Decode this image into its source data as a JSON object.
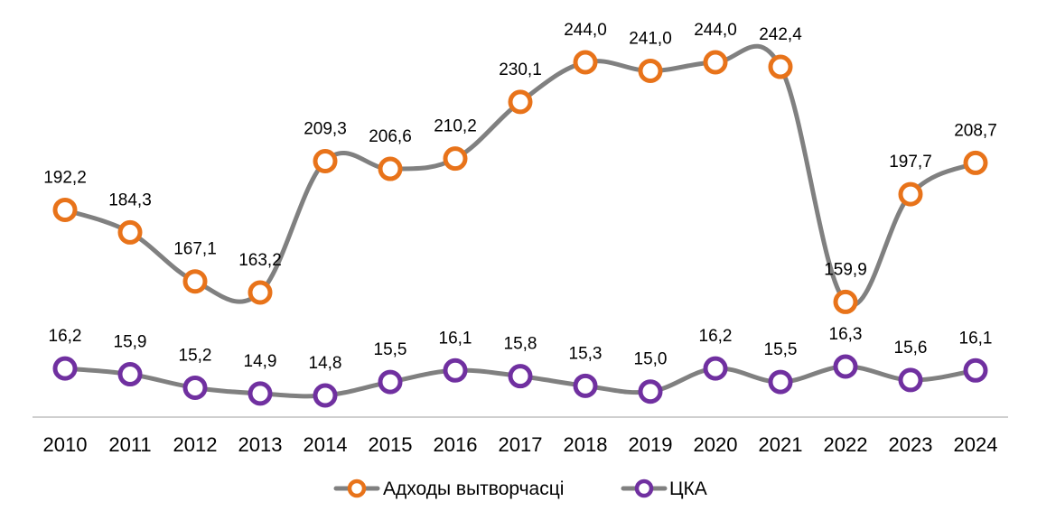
{
  "chart_data": {
    "type": "line",
    "categories": [
      "2010",
      "2011",
      "2012",
      "2013",
      "2014",
      "2015",
      "2016",
      "2017",
      "2018",
      "2019",
      "2020",
      "2021",
      "2022",
      "2023",
      "2024"
    ],
    "series": [
      {
        "name": "Адходы вытворчасці",
        "values": [
          192.2,
          184.3,
          167.1,
          163.2,
          209.3,
          206.6,
          210.2,
          230.1,
          244.0,
          241.0,
          244.0,
          242.4,
          159.9,
          197.7,
          208.7
        ],
        "labels": [
          "192,2",
          "184,3",
          "167,1",
          "163,2",
          "209,3",
          "206,6",
          "210,2",
          "230,1",
          "244,0",
          "241,0",
          "244,0",
          "242,4",
          "159,9",
          "197,7",
          "208,7"
        ],
        "marker_color": "#E8731A"
      },
      {
        "name": "ЦКА",
        "values": [
          16.2,
          15.9,
          15.2,
          14.9,
          14.8,
          15.5,
          16.1,
          15.8,
          15.3,
          15.0,
          16.2,
          15.5,
          16.3,
          15.6,
          16.1
        ],
        "labels": [
          "16,2",
          "15,9",
          "15,2",
          "14,9",
          "14,8",
          "15,5",
          "16,1",
          "15,8",
          "15,3",
          "15,0",
          "16,2",
          "15,5",
          "16,3",
          "15,6",
          "16,1"
        ],
        "marker_color": "#7030A0"
      }
    ],
    "line_color": "#808080",
    "axis_color": "#BFBFBF",
    "title": "",
    "xlabel": "",
    "ylabel": "",
    "smooth": true,
    "y_axis_visible": false,
    "grid": false,
    "legend_position": "bottom-center"
  }
}
